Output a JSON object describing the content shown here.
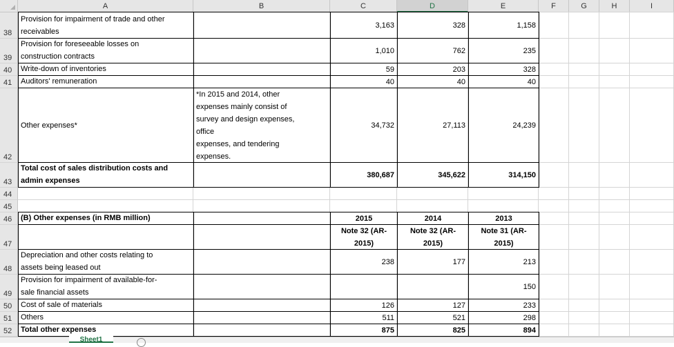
{
  "columns": [
    "A",
    "B",
    "C",
    "D",
    "E",
    "F",
    "G",
    "H",
    "I"
  ],
  "selected_column": "D",
  "rows": [
    {
      "num": "38",
      "a": [
        "Provision for impairment of trade and other",
        "receivables"
      ],
      "c": "3,163",
      "d": "328",
      "e": "1,158"
    },
    {
      "num": "39",
      "a": [
        "Provision for foreseeable losses on",
        "construction contracts"
      ],
      "c": "1,010",
      "d": "762",
      "e": "235"
    },
    {
      "num": "40",
      "a": [
        "Write-down of inventories"
      ],
      "c": "59",
      "d": "203",
      "e": "328"
    },
    {
      "num": "41",
      "a": [
        "Auditors' remuneration"
      ],
      "c": "40",
      "d": "40",
      "e": "40"
    },
    {
      "num": "42",
      "a": [
        "Other expenses*"
      ],
      "b": [
        "*In 2015 and 2014, other",
        "expenses mainly consist of",
        "survey and design expenses,",
        "office",
        "expenses, and tendering",
        "expenses."
      ],
      "c": "34,732",
      "d": "27,113",
      "e": "24,239"
    },
    {
      "num": "43",
      "a": [
        "Total cost of sales distribution costs and",
        "admin expenses"
      ],
      "c": "380,687",
      "d": "345,622",
      "e": "314,150"
    },
    {
      "num": "44"
    },
    {
      "num": "45"
    },
    {
      "num": "46",
      "a": [
        "(B) Other expenses (in RMB million)"
      ],
      "c": [
        "2015"
      ],
      "d": [
        "2014"
      ],
      "e": [
        "2013"
      ]
    },
    {
      "num": "47",
      "c": [
        "Note 32 (AR-",
        "2015)"
      ],
      "d": [
        "Note 32 (AR-",
        "2015)"
      ],
      "e": [
        "Note 31 (AR-",
        "2015)"
      ]
    },
    {
      "num": "48",
      "a": [
        "Depreciation and other costs relating to",
        "assets being leased out"
      ],
      "c": "238",
      "d": "177",
      "e": "213"
    },
    {
      "num": "49",
      "a": [
        "Provision for impairment of available-for-",
        "sale financial assets"
      ],
      "c": "",
      "d": "",
      "e": "150"
    },
    {
      "num": "50",
      "a": [
        "Cost of sale of materials"
      ],
      "c": "126",
      "d": "127",
      "e": "233"
    },
    {
      "num": "51",
      "a": [
        "Others"
      ],
      "c": "511",
      "d": "521",
      "e": "298"
    },
    {
      "num": "52",
      "a": [
        "Total other expenses"
      ],
      "c": "875",
      "d": "825",
      "e": "894"
    }
  ],
  "sheet_tab": "Sheet1"
}
